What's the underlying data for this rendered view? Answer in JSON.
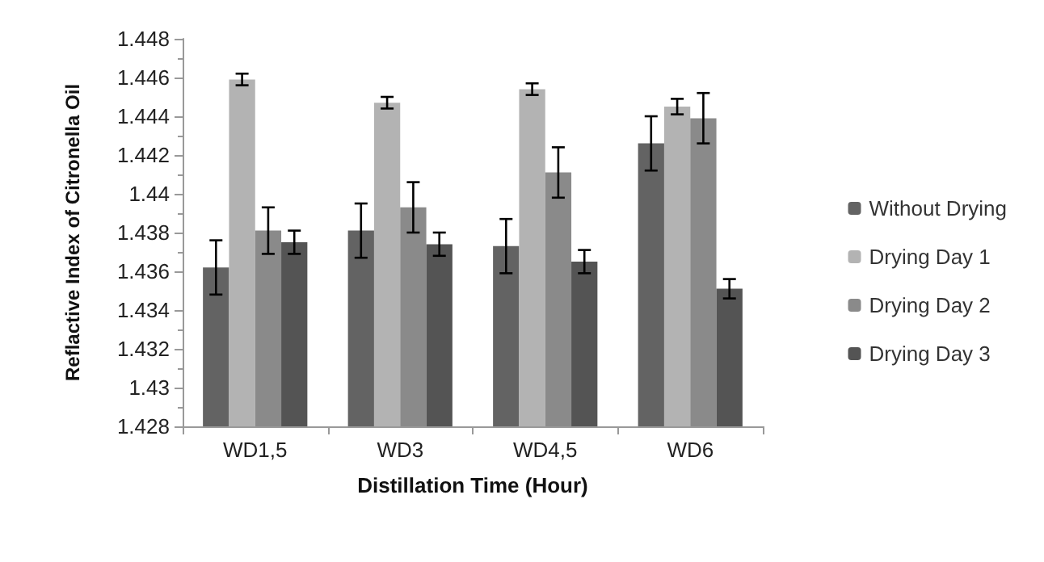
{
  "chart_data": {
    "type": "bar",
    "xlabel": "Distillation Time (Hour)",
    "ylabel": "Reflactive Index of Citronella Oil",
    "categories": [
      "WD1,5",
      "WD3",
      "WD4,5",
      "WD6"
    ],
    "series": [
      {
        "name": "Without Drying",
        "color": "#636363",
        "values": [
          1.4362,
          1.4381,
          1.4373,
          1.4426
        ],
        "errors": [
          0.0014,
          0.0014,
          0.0014,
          0.0014
        ]
      },
      {
        "name": "Drying Day 1",
        "color": "#b3b3b3",
        "values": [
          1.4459,
          1.4447,
          1.4454,
          1.4445
        ],
        "errors": [
          0.0003,
          0.0003,
          0.0003,
          0.0004
        ]
      },
      {
        "name": "Drying Day 2",
        "color": "#8a8a8a",
        "values": [
          1.4381,
          1.4393,
          1.4411,
          1.4439
        ],
        "errors": [
          0.0012,
          0.0013,
          0.0013,
          0.0013
        ]
      },
      {
        "name": "Drying Day 3",
        "color": "#545454",
        "values": [
          1.4375,
          1.4374,
          1.4365,
          1.4351
        ],
        "errors": [
          0.0006,
          0.0006,
          0.0006,
          0.0005
        ]
      }
    ],
    "ylim": [
      1.428,
      1.448
    ],
    "yticks": [
      1.428,
      1.43,
      1.432,
      1.434,
      1.436,
      1.438,
      1.44,
      1.442,
      1.444,
      1.446,
      1.448
    ],
    "grid": false,
    "legend": "right"
  }
}
